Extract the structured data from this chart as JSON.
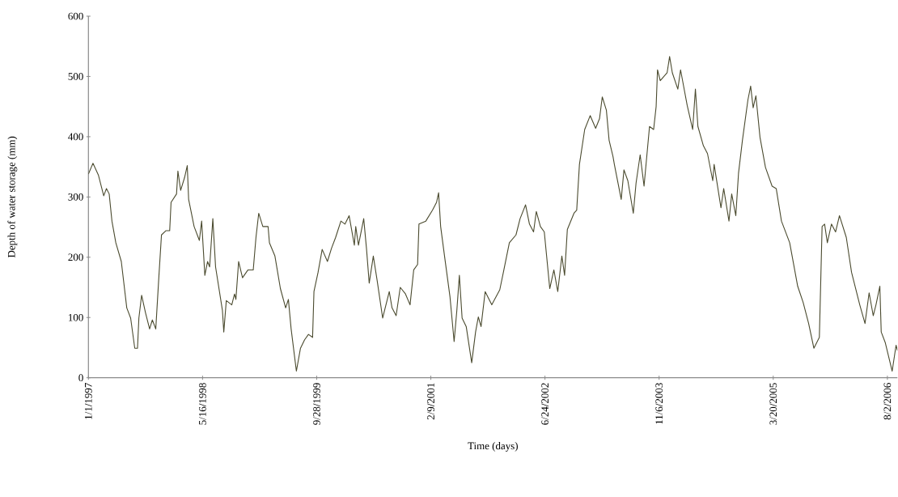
{
  "chart_data": {
    "type": "line",
    "xlabel": "Time (days)",
    "ylabel": "Depth of water storage (mm)",
    "xlim": [
      "1997-01-01",
      "2006-09-15"
    ],
    "ylim": [
      0,
      600
    ],
    "xticks": [
      {
        "value": "1997-01-01",
        "label": "1/1/1997"
      },
      {
        "value": "1998-05-16",
        "label": "5/16/1998"
      },
      {
        "value": "1999-09-28",
        "label": "9/28/1999"
      },
      {
        "value": "2001-02-09",
        "label": "2/9/2001"
      },
      {
        "value": "2002-06-24",
        "label": "6/24/2002"
      },
      {
        "value": "2003-11-06",
        "label": "11/6/2003"
      },
      {
        "value": "2005-03-20",
        "label": "3/20/2005"
      },
      {
        "value": "2006-08-02",
        "label": "8/2/2006"
      }
    ],
    "yticks": [
      0,
      100,
      200,
      300,
      400,
      500,
      600
    ],
    "marker": "none",
    "line_style": "solid",
    "series": [
      {
        "color": "#4a4a2e",
        "x": [
          "1997-01-01",
          "1997-01-21",
          "1997-02-14",
          "1997-03-09",
          "1997-03-21",
          "1997-04-02",
          "1997-04-14",
          "1997-05-01",
          "1997-05-25",
          "1997-06-18",
          "1997-07-05",
          "1997-07-23",
          "1997-08-04",
          "1997-08-10",
          "1997-08-22",
          "1997-09-08",
          "1997-09-26",
          "1997-10-08",
          "1997-10-23",
          "1997-11-06",
          "1997-11-17",
          "1997-12-06",
          "1997-12-23",
          "1997-12-29",
          "1998-01-22",
          "1998-01-28",
          "1998-02-09",
          "1998-02-26",
          "1998-03-10",
          "1998-03-16",
          "1998-04-09",
          "1998-05-02",
          "1998-05-12",
          "1998-05-26",
          "1998-06-07",
          "1998-06-16",
          "1998-06-30",
          "1998-07-12",
          "1998-08-11",
          "1998-08-17",
          "1998-08-28",
          "1998-09-21",
          "1998-10-03",
          "1998-10-09",
          "1998-10-21",
          "1998-11-07",
          "1998-12-01",
          "1998-12-24",
          "1999-01-05",
          "1999-01-17",
          "1999-02-04",
          "1999-02-27",
          "1999-03-05",
          "1999-03-29",
          "1999-04-22",
          "1999-05-15",
          "1999-05-27",
          "1999-06-08",
          "1999-07-01",
          "1999-07-19",
          "1999-08-06",
          "1999-08-23",
          "1999-09-10",
          "1999-09-16",
          "1999-10-04",
          "1999-10-22",
          "1999-11-14",
          "1999-12-02",
          "1999-12-20",
          "2000-01-12",
          "2000-01-30",
          "2000-02-17",
          "2000-03-11",
          "2000-03-17",
          "2000-03-29",
          "2000-04-21",
          "2000-05-03",
          "2000-05-15",
          "2000-06-02",
          "2000-06-19",
          "2000-07-13",
          "2000-08-11",
          "2000-08-23",
          "2000-09-10",
          "2000-09-28",
          "2000-10-21",
          "2000-11-10",
          "2000-11-26",
          "2000-12-13",
          "2000-12-19",
          "2001-01-18",
          "2001-02-16",
          "2001-03-06",
          "2001-03-15",
          "2001-03-24",
          "2001-04-10",
          "2001-05-04",
          "2001-05-22",
          "2001-06-03",
          "2001-06-14",
          "2001-06-26",
          "2001-07-14",
          "2001-08-07",
          "2001-08-24",
          "2001-09-05",
          "2001-09-17",
          "2001-10-05",
          "2001-11-03",
          "2001-12-08",
          "2001-12-26",
          "2002-01-19",
          "2002-02-17",
          "2002-03-07",
          "2002-03-31",
          "2002-04-17",
          "2002-05-05",
          "2002-05-17",
          "2002-06-04",
          "2002-06-21",
          "2002-07-15",
          "2002-08-02",
          "2002-08-19",
          "2002-09-06",
          "2002-09-18",
          "2002-09-30",
          "2002-10-29",
          "2002-11-10",
          "2002-11-22",
          "2002-12-15",
          "2003-01-08",
          "2003-02-01",
          "2003-02-18",
          "2003-03-02",
          "2003-03-20",
          "2003-04-01",
          "2003-04-18",
          "2003-04-24",
          "2003-05-24",
          "2003-06-05",
          "2003-06-22",
          "2003-07-16",
          "2003-07-28",
          "2003-08-15",
          "2003-09-01",
          "2003-09-25",
          "2003-10-13",
          "2003-10-24",
          "2003-10-30",
          "2003-11-11",
          "2003-12-11",
          "2003-12-22",
          "2004-01-03",
          "2004-01-27",
          "2004-02-08",
          "2004-03-08",
          "2004-04-01",
          "2004-04-13",
          "2004-04-24",
          "2004-05-18",
          "2004-06-05",
          "2004-06-28",
          "2004-07-04",
          "2004-08-03",
          "2004-08-15",
          "2004-09-07",
          "2004-09-19",
          "2004-10-07",
          "2004-10-19",
          "2004-11-05",
          "2004-11-29",
          "2004-12-11",
          "2004-12-22",
          "2005-01-03",
          "2005-01-21",
          "2005-02-14",
          "2005-03-15",
          "2005-04-02",
          "2005-04-25",
          "2005-05-31",
          "2005-07-05",
          "2005-07-29",
          "2005-08-22",
          "2005-09-14",
          "2005-10-08",
          "2005-10-20",
          "2005-10-31",
          "2005-11-12",
          "2005-11-30",
          "2005-12-18",
          "2006-01-04",
          "2006-02-03",
          "2006-02-26",
          "2006-04-03",
          "2006-04-26",
          "2006-05-14",
          "2006-06-01",
          "2006-06-13",
          "2006-06-30",
          "2006-07-06",
          "2006-07-24",
          "2006-08-23",
          "2006-09-09",
          "2006-09-15"
        ],
        "values": [
          338,
          356,
          336,
          302,
          314,
          305,
          260,
          224,
          193,
          116,
          99,
          49,
          49,
          99,
          137,
          108,
          81,
          96,
          81,
          170,
          237,
          244,
          244,
          291,
          305,
          343,
          311,
          332,
          352,
          296,
          251,
          228,
          260,
          170,
          193,
          184,
          264,
          184,
          112,
          76,
          128,
          121,
          139,
          130,
          193,
          166,
          179,
          179,
          233,
          273,
          251,
          251,
          224,
          202,
          148,
          116,
          130,
          81,
          11,
          49,
          63,
          72,
          67,
          143,
          175,
          213,
          193,
          215,
          233,
          260,
          255,
          269,
          220,
          251,
          220,
          264,
          215,
          157,
          202,
          161,
          99,
          143,
          116,
          103,
          150,
          139,
          121,
          179,
          188,
          255,
          260,
          278,
          291,
          307,
          251,
          202,
          134,
          60,
          112,
          170,
          99,
          85,
          25,
          76,
          101,
          85,
          143,
          121,
          146,
          179,
          224,
          237,
          264,
          287,
          255,
          242,
          276,
          251,
          242,
          148,
          179,
          143,
          202,
          170,
          246,
          273,
          278,
          354,
          412,
          435,
          414,
          430,
          466,
          444,
          394,
          367,
          354,
          296,
          345,
          327,
          273,
          323,
          370,
          318,
          417,
          412,
          450,
          511,
          493,
          506,
          533,
          506,
          479,
          511,
          452,
          412,
          479,
          417,
          385,
          372,
          327,
          354,
          282,
          314,
          260,
          305,
          269,
          340,
          394,
          461,
          484,
          448,
          468,
          399,
          349,
          318,
          314,
          260,
          224,
          152,
          125,
          90,
          49,
          67,
          251,
          255,
          224,
          255,
          242,
          269,
          233,
          175,
          121,
          90,
          141,
          103,
          121,
          152,
          76,
          58,
          11,
          54,
          45
        ]
      }
    ]
  }
}
